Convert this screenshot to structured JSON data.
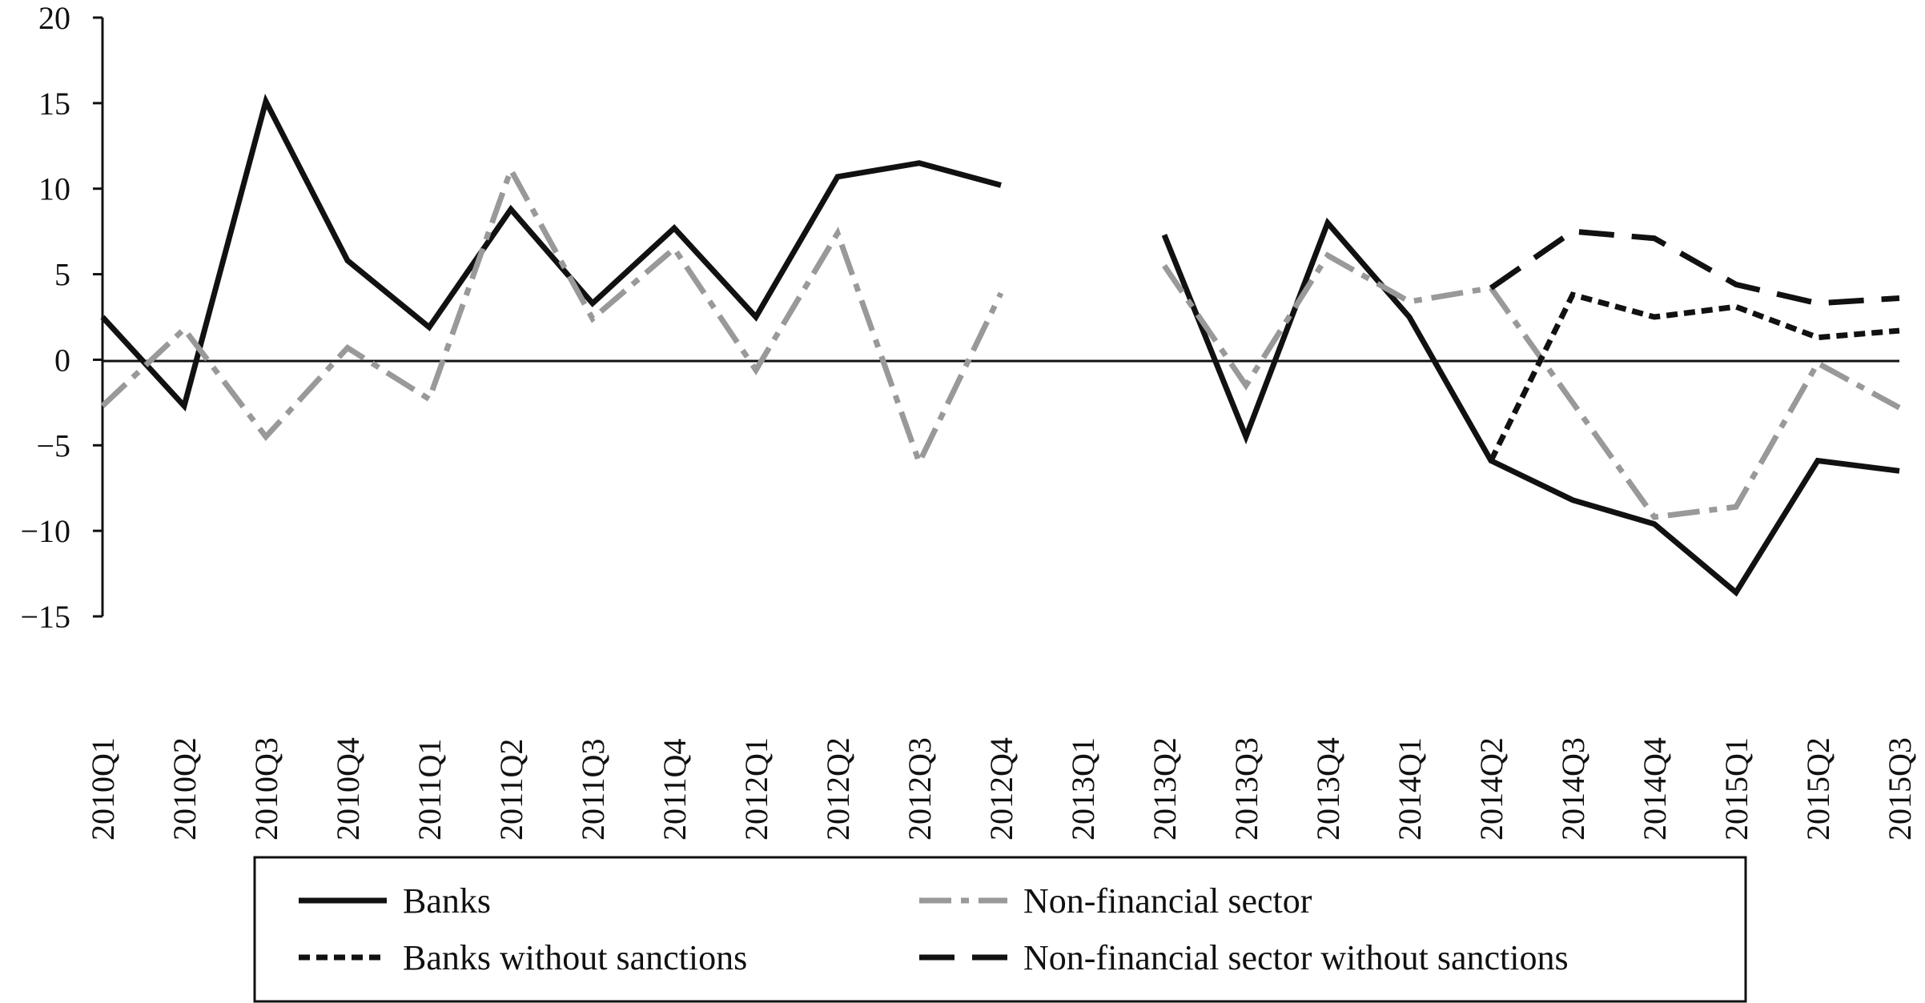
{
  "chart_data": {
    "type": "line",
    "title": "",
    "xlabel": "",
    "ylabel": "",
    "ylim": [
      -15,
      20
    ],
    "yticks": [
      20,
      15,
      10,
      5,
      0,
      -5,
      -10,
      -15
    ],
    "grid": false,
    "legend_position": "bottom",
    "categories": [
      "2010Q1",
      "2010Q2",
      "2010Q3",
      "2010Q4",
      "2011Q1",
      "2011Q2",
      "2011Q3",
      "2011Q4",
      "2012Q1",
      "2012Q2",
      "2012Q3",
      "2012Q4",
      "2013Q1",
      "2013Q2",
      "2013Q3",
      "2013Q4",
      "2014Q1",
      "2014Q2",
      "2014Q3",
      "2014Q4",
      "2015Q1",
      "2015Q2",
      "2015Q3"
    ],
    "series": [
      {
        "name": "Banks",
        "style": "solid",
        "color": "#111111",
        "values": [
          2.5,
          -2.7,
          15.1,
          5.8,
          1.9,
          8.8,
          3.3,
          7.7,
          2.5,
          10.7,
          11.5,
          10.2,
          null,
          7.3,
          -4.5,
          8.0,
          2.5,
          -5.9,
          -8.2,
          -9.6,
          -13.6,
          -5.9,
          -6.5
        ]
      },
      {
        "name": "Non-financial sector",
        "style": "dashdot",
        "color": "#999999",
        "values": [
          -2.7,
          1.8,
          -4.5,
          0.7,
          -2.3,
          11.1,
          2.4,
          6.5,
          -0.6,
          7.4,
          -6.0,
          3.9,
          null,
          5.5,
          -1.5,
          6.1,
          3.4,
          4.2,
          -2.5,
          -9.2,
          -8.6,
          -0.2,
          -2.8
        ]
      },
      {
        "name": "Banks without sanctions",
        "style": "dotted",
        "color": "#111111",
        "values": [
          null,
          null,
          null,
          null,
          null,
          null,
          null,
          null,
          null,
          null,
          null,
          null,
          null,
          null,
          null,
          null,
          null,
          -5.9,
          3.8,
          2.5,
          3.1,
          1.3,
          1.7
        ]
      },
      {
        "name": "Non-financial sector without sanctions",
        "style": "dashed",
        "color": "#111111",
        "values": [
          null,
          null,
          null,
          null,
          null,
          null,
          null,
          null,
          null,
          null,
          null,
          null,
          null,
          null,
          null,
          null,
          null,
          4.2,
          7.5,
          7.1,
          4.4,
          3.3,
          3.6
        ]
      }
    ]
  },
  "legend": {
    "banks": "Banks",
    "nonfin": "Non-financial sector",
    "banks_ws": "Banks without sanctions",
    "nonfin_ws": "Non-financial sector without sanctions"
  }
}
